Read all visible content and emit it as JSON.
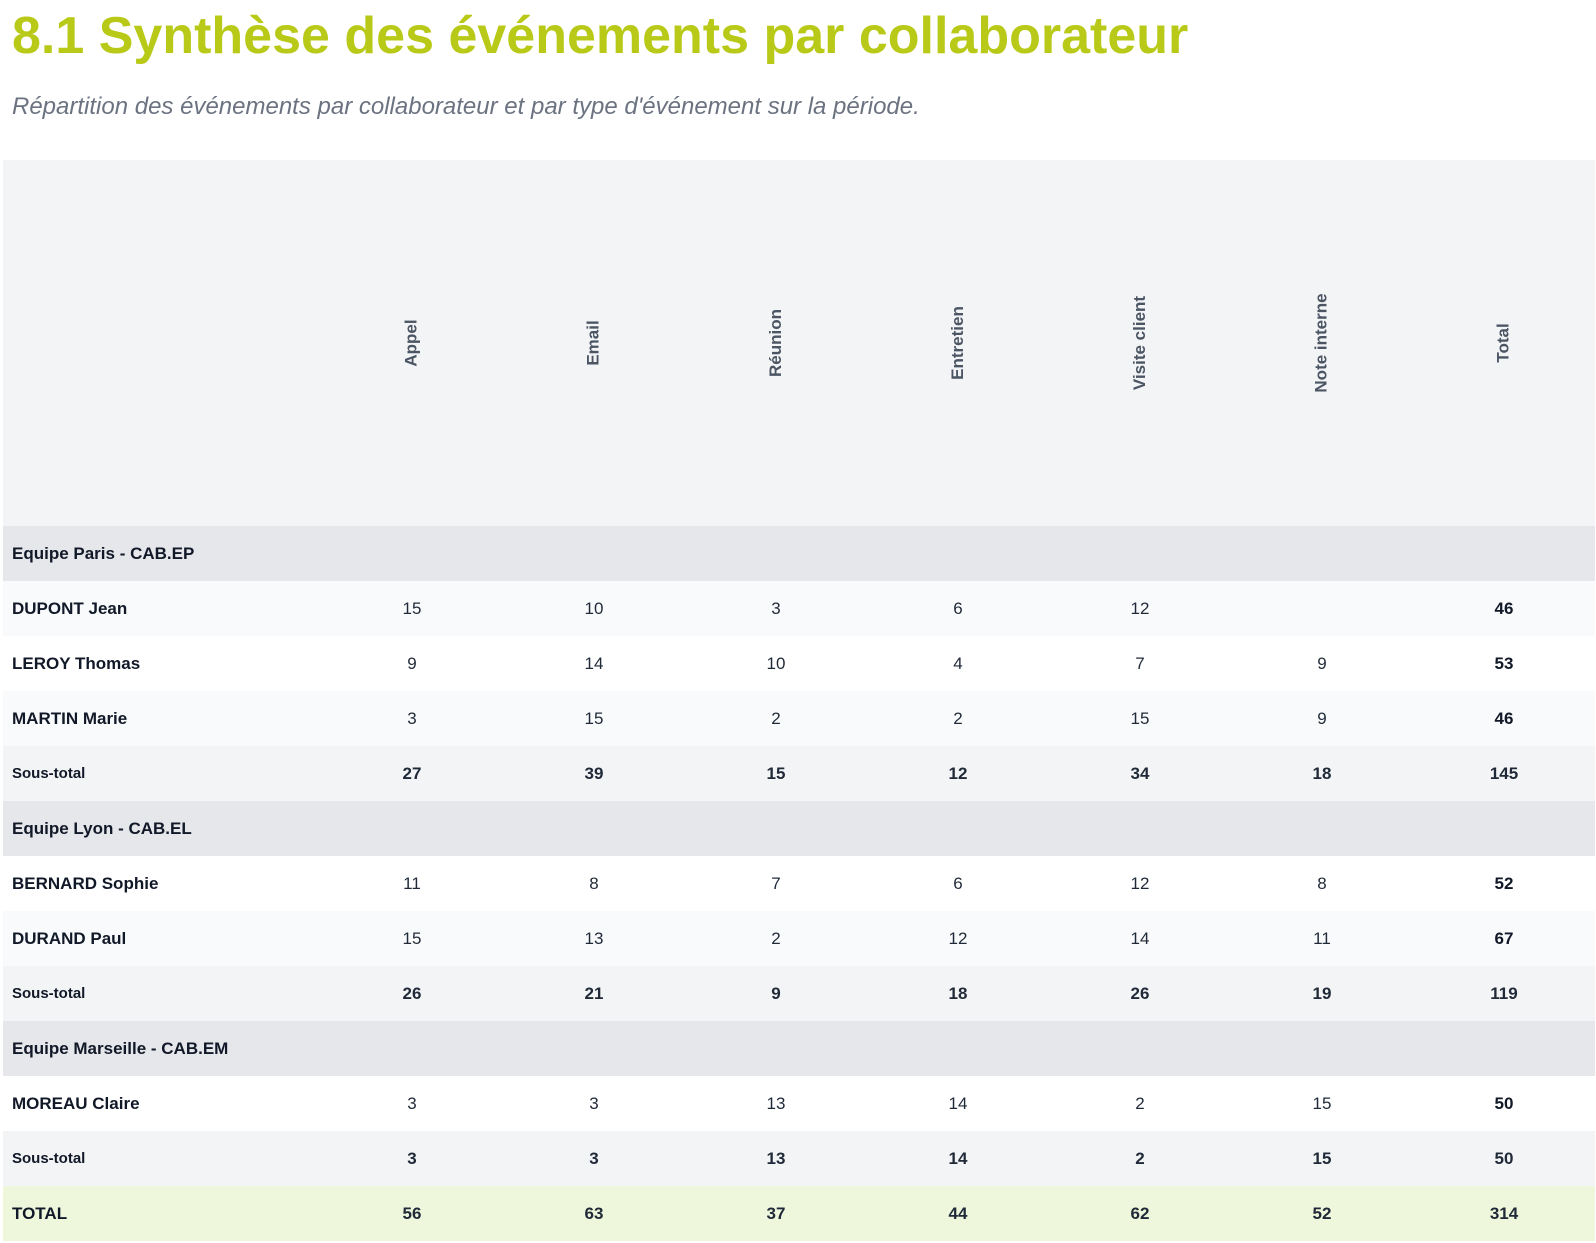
{
  "heading": {
    "title": "8.1 Synthèse des événements par collaborateur",
    "subtitle": "Répartition des événements par collaborateur et par type d'événement sur la période."
  },
  "table": {
    "columns": [
      "Appel",
      "Email",
      "Réunion",
      "Entretien",
      "Visite client",
      "Note interne",
      "Total"
    ],
    "rows": [
      {
        "type": "group",
        "name": "Equipe Paris - CAB.EP"
      },
      {
        "type": "data",
        "name": "DUPONT Jean",
        "values": [
          "15",
          "10",
          "3",
          "6",
          "12",
          "",
          "46"
        ]
      },
      {
        "type": "data",
        "name": "LEROY Thomas",
        "values": [
          "9",
          "14",
          "10",
          "4",
          "7",
          "9",
          "53"
        ]
      },
      {
        "type": "data",
        "name": "MARTIN Marie",
        "values": [
          "3",
          "15",
          "2",
          "2",
          "15",
          "9",
          "46"
        ]
      },
      {
        "type": "sub",
        "name": "Sous-total",
        "values": [
          "27",
          "39",
          "15",
          "12",
          "34",
          "18",
          "145"
        ]
      },
      {
        "type": "group",
        "name": "Equipe Lyon - CAB.EL"
      },
      {
        "type": "data",
        "name": "BERNARD Sophie",
        "values": [
          "11",
          "8",
          "7",
          "6",
          "12",
          "8",
          "52"
        ]
      },
      {
        "type": "data",
        "name": "DURAND Paul",
        "values": [
          "15",
          "13",
          "2",
          "12",
          "14",
          "11",
          "67"
        ]
      },
      {
        "type": "sub",
        "name": "Sous-total",
        "values": [
          "26",
          "21",
          "9",
          "18",
          "26",
          "19",
          "119"
        ]
      },
      {
        "type": "group",
        "name": "Equipe Marseille - CAB.EM"
      },
      {
        "type": "data",
        "name": "MOREAU Claire",
        "values": [
          "3",
          "3",
          "13",
          "14",
          "2",
          "15",
          "50"
        ]
      },
      {
        "type": "sub",
        "name": "Sous-total",
        "values": [
          "3",
          "3",
          "13",
          "14",
          "2",
          "15",
          "50"
        ]
      },
      {
        "type": "total",
        "name": "TOTAL",
        "values": [
          "56",
          "63",
          "37",
          "44",
          "62",
          "52",
          "314"
        ]
      }
    ]
  },
  "colors": {
    "title": "#b8c918",
    "total_row_bg": "#eef7dc",
    "total_row_text": "#6b8e1a",
    "group_bg": "#e5e7eb",
    "header_bg": "#f3f4f6"
  }
}
